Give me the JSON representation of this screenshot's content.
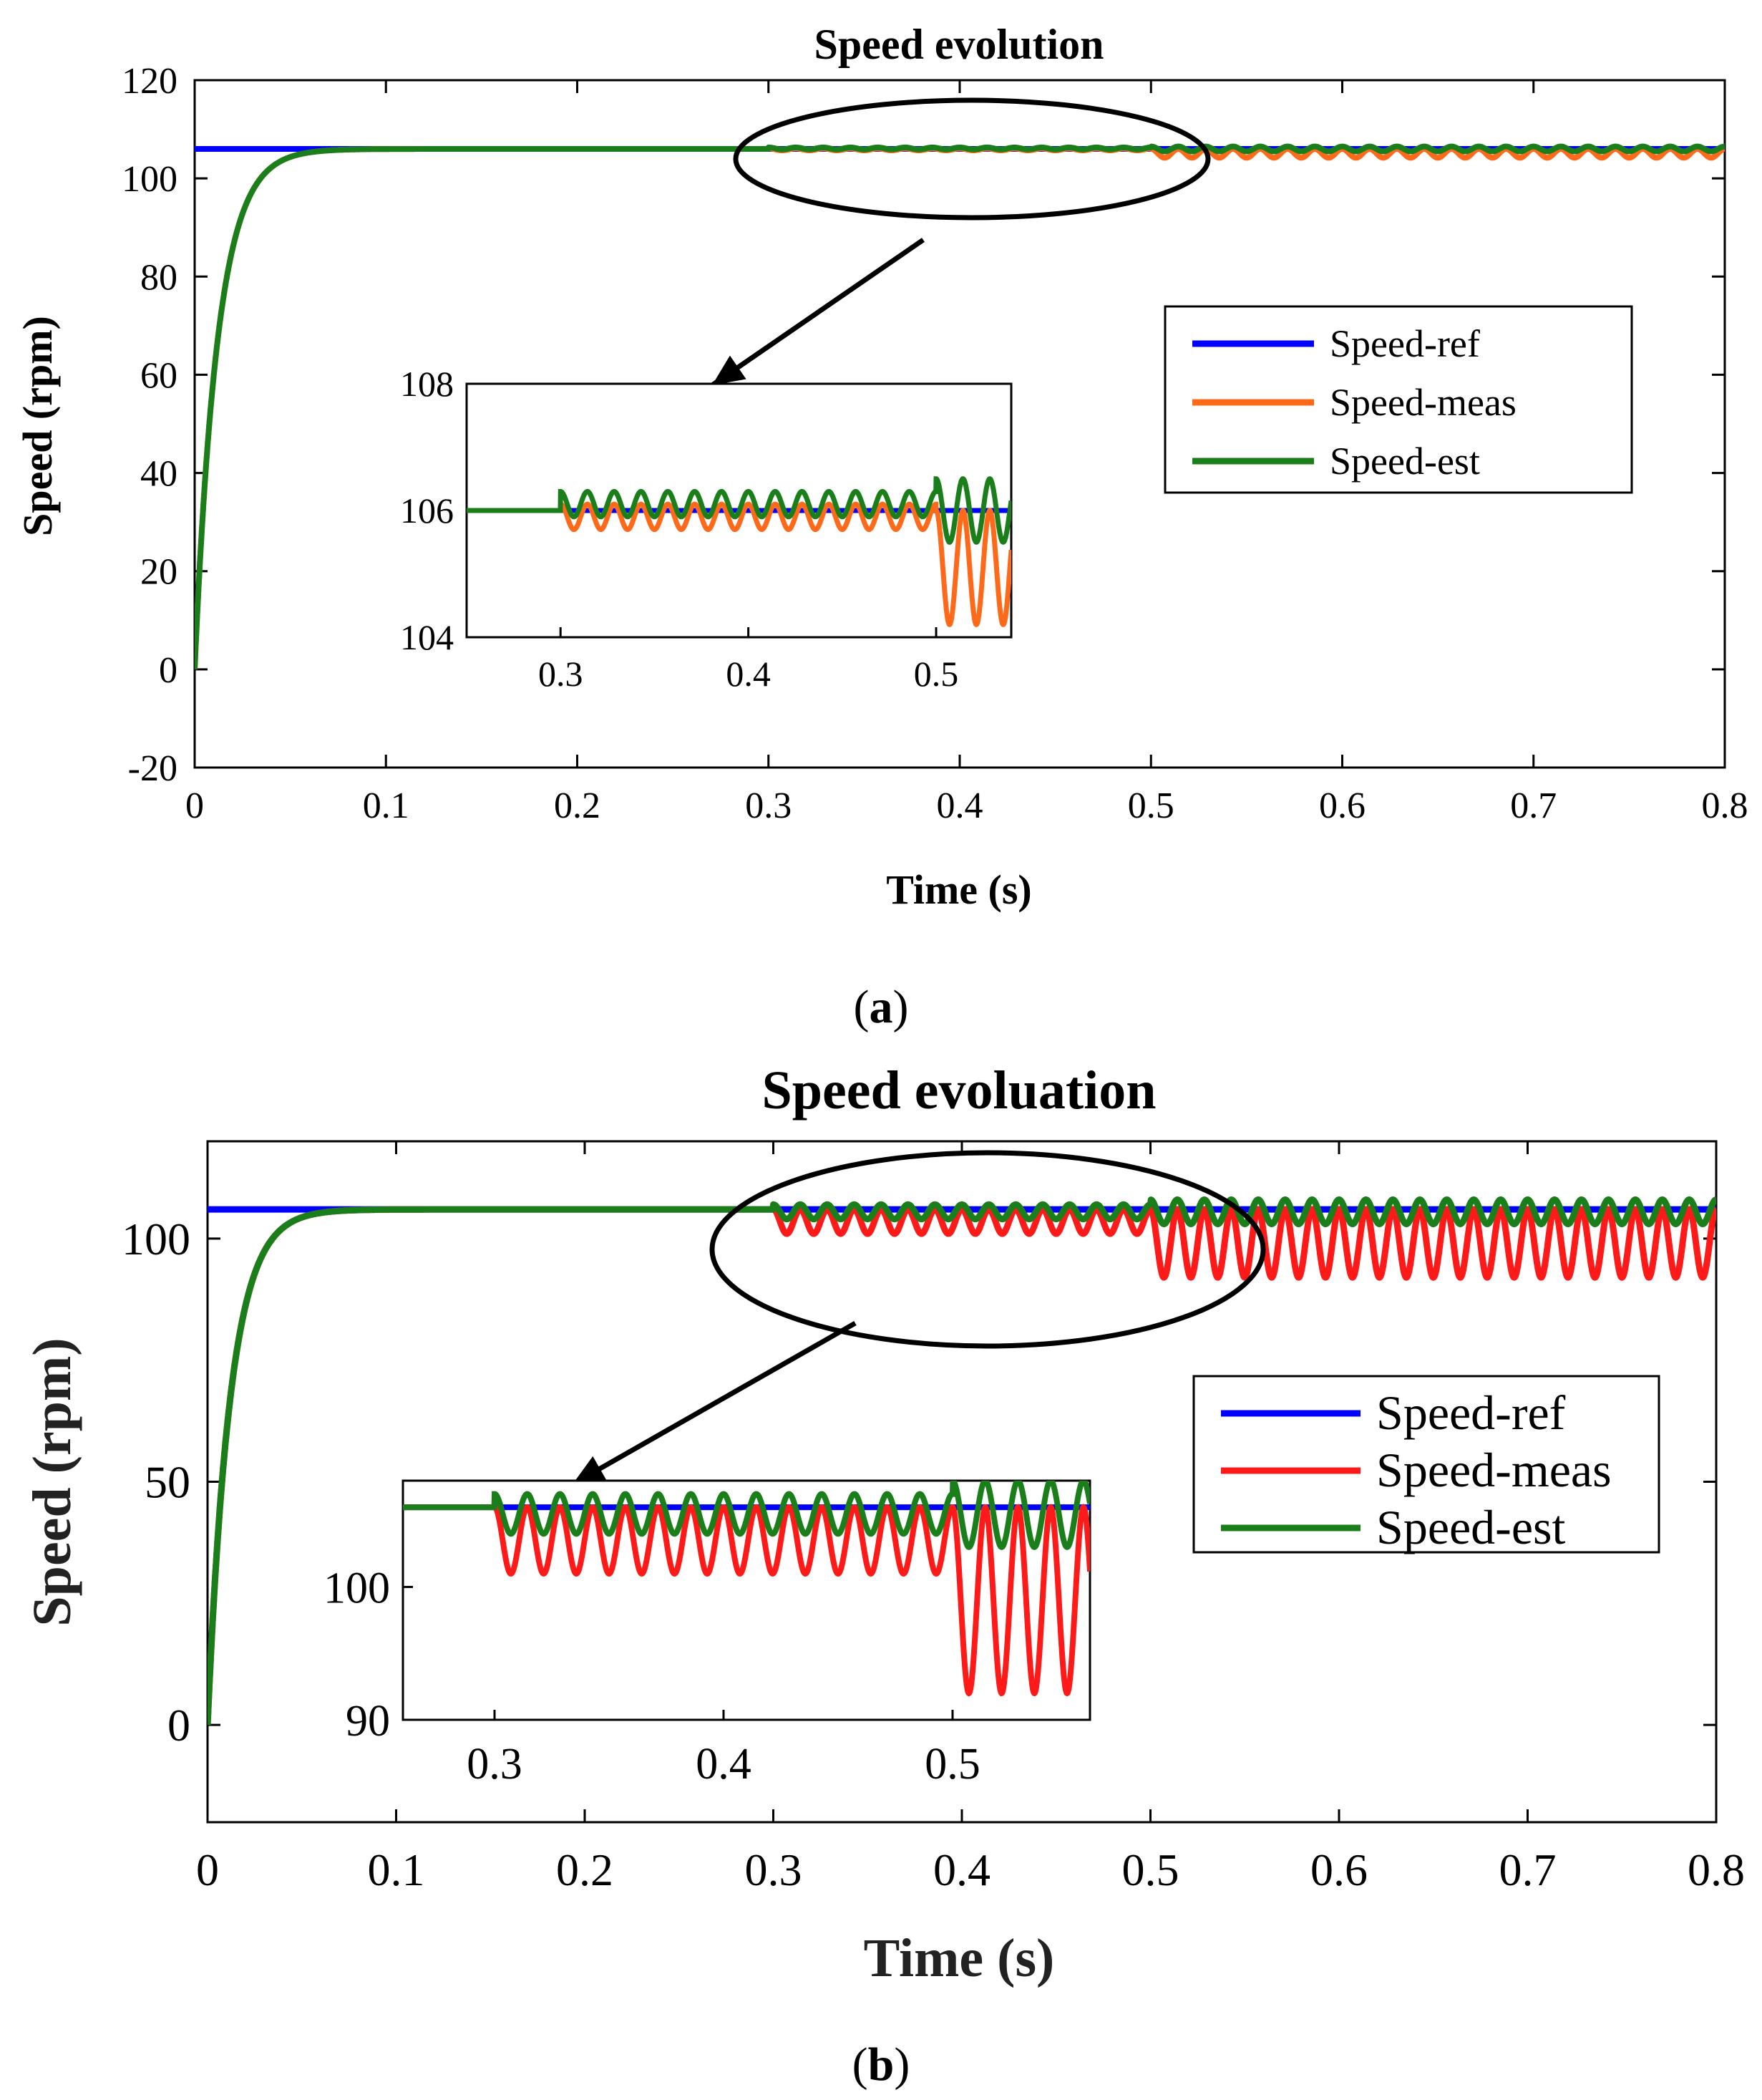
{
  "captions": {
    "a": "a",
    "b": "b"
  },
  "chart_data": [
    {
      "id": "a",
      "type": "line",
      "title": "Speed evolution",
      "xlabel": "Time (s)",
      "ylabel": "Speed (rpm)",
      "xlim": [
        0,
        0.8
      ],
      "ylim": [
        -20,
        120
      ],
      "xticks": [
        "0",
        "0.1",
        "0.2",
        "0.3",
        "0.4",
        "0.5",
        "0.6",
        "0.7",
        "0.8"
      ],
      "yticks": [
        "-20",
        "0",
        "20",
        "40",
        "60",
        "80",
        "100",
        "120"
      ],
      "legend_position": "right",
      "reference_speed": 106,
      "step_rise_time_constant": 0.012,
      "series": [
        {
          "name": "Speed-ref",
          "color": "#0000ff",
          "description_values": {
            "value": 106
          }
        },
        {
          "name": "Speed-meas",
          "color": "#ff6a1a",
          "oscillation": [
            {
              "from": 0.3,
              "to": 0.5,
              "min": 105.7,
              "max": 106.1
            },
            {
              "from": 0.5,
              "to": 0.8,
              "min": 104.2,
              "max": 106.0
            }
          ]
        },
        {
          "name": "Speed-est",
          "color": "#1a7f1a",
          "oscillation": [
            {
              "from": 0.3,
              "to": 0.5,
              "min": 105.9,
              "max": 106.3
            },
            {
              "from": 0.5,
              "to": 0.8,
              "min": 105.5,
              "max": 106.5
            }
          ]
        }
      ],
      "inset": {
        "xlim": [
          0.25,
          0.54
        ],
        "ylim": [
          104,
          108
        ],
        "xticks": [
          "0.3",
          "0.4",
          "0.5"
        ],
        "yticks": [
          "104",
          "106",
          "108"
        ]
      }
    },
    {
      "id": "b",
      "type": "line",
      "title": "Speed evoluation",
      "xlabel": "Time (s)",
      "ylabel": "Speed (rpm)",
      "xlim": [
        0,
        0.8
      ],
      "ylim": [
        -20,
        120
      ],
      "xticks": [
        "0",
        "0.1",
        "0.2",
        "0.3",
        "0.4",
        "0.5",
        "0.6",
        "0.7",
        "0.8"
      ],
      "yticks": [
        "0",
        "50",
        "100"
      ],
      "legend_position": "right",
      "reference_speed": 106,
      "step_rise_time_constant": 0.012,
      "series": [
        {
          "name": "Speed-ref",
          "color": "#0000ff",
          "description_values": {
            "value": 106
          }
        },
        {
          "name": "Speed-meas",
          "color": "#ff1a1a",
          "oscillation": [
            {
              "from": 0.3,
              "to": 0.5,
              "min": 101,
              "max": 106
            },
            {
              "from": 0.5,
              "to": 0.8,
              "min": 92,
              "max": 106
            }
          ]
        },
        {
          "name": "Speed-est",
          "color": "#1a7f1a",
          "oscillation": [
            {
              "from": 0.3,
              "to": 0.5,
              "min": 104,
              "max": 107
            },
            {
              "from": 0.5,
              "to": 0.8,
              "min": 103,
              "max": 108
            }
          ]
        }
      ],
      "inset": {
        "xlim": [
          0.26,
          0.56
        ],
        "ylim": [
          90,
          108
        ],
        "xticks": [
          "0.3",
          "0.4",
          "0.5"
        ],
        "yticks": [
          "90",
          "100"
        ]
      }
    }
  ]
}
